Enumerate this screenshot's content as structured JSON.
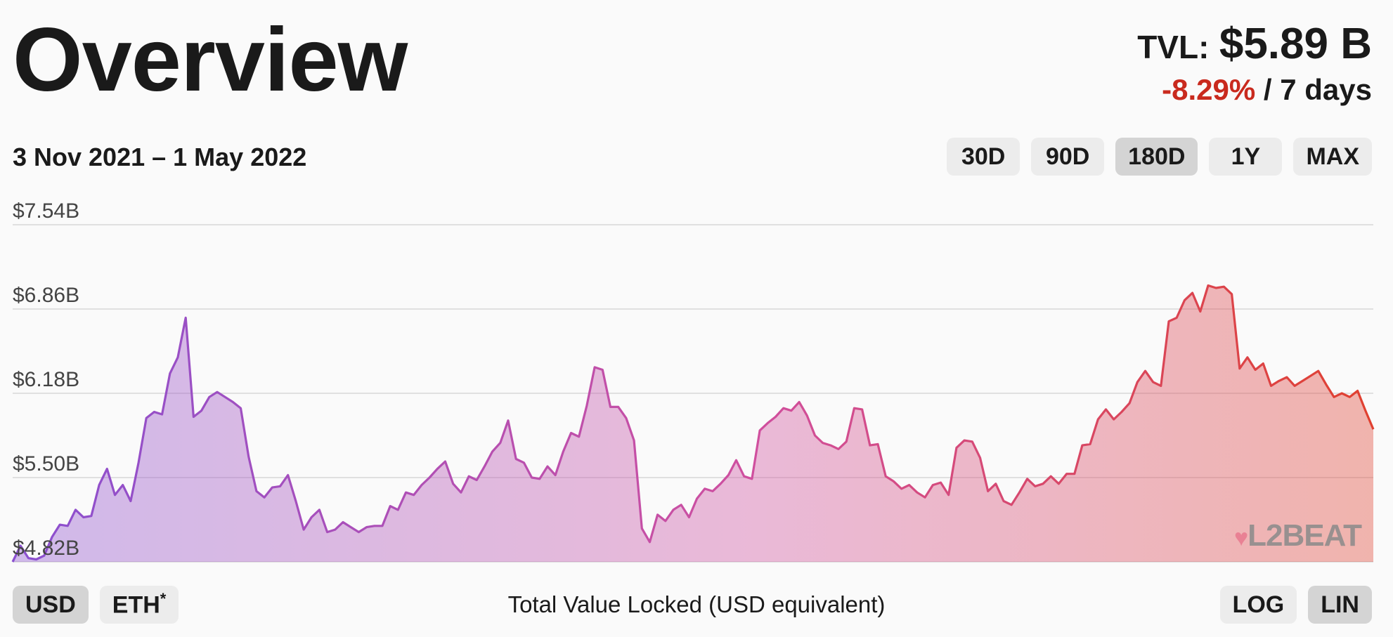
{
  "header": {
    "title": "Overview",
    "tvl_label": "TVL:",
    "tvl_value": "$5.89 B",
    "change": "-8.29%",
    "change_period": "/ 7 days"
  },
  "date_range": "3 Nov 2021 – 1 May 2022",
  "range_buttons": [
    {
      "label": "30D",
      "active": false
    },
    {
      "label": "90D",
      "active": false
    },
    {
      "label": "180D",
      "active": true
    },
    {
      "label": "1Y",
      "active": false
    },
    {
      "label": "MAX",
      "active": false
    }
  ],
  "currency_buttons": [
    {
      "label": "USD",
      "active": true
    },
    {
      "label": "ETH",
      "active": false,
      "note": "*"
    }
  ],
  "scale_buttons": [
    {
      "label": "LOG",
      "active": false
    },
    {
      "label": "LIN",
      "active": true
    }
  ],
  "caption": "Total Value Locked (USD equivalent)",
  "logo": {
    "text": "L2BEAT"
  },
  "colors": {
    "start": "#8a4fd0",
    "mid": "#d04f9e",
    "end": "#e0402f",
    "negative": "#c92a1e"
  },
  "chart_data": {
    "type": "area",
    "title": "",
    "xlabel": "Total Value Locked (USD equivalent)",
    "ylabel": "",
    "x_range": [
      "2021-11-03",
      "2022-05-01"
    ],
    "ylim": [
      4.82,
      7.54
    ],
    "yticks": [
      "$4.82B",
      "$5.50B",
      "$6.18B",
      "$6.86B",
      "$7.54B"
    ],
    "ytick_values": [
      4.82,
      5.5,
      6.18,
      6.86,
      7.54
    ],
    "grid": true,
    "legend": "none",
    "series": [
      {
        "values": [
          4.82,
          4.95,
          4.85,
          4.84,
          4.87,
          5.02,
          5.12,
          5.11,
          5.24,
          5.18,
          5.19,
          5.44,
          5.57,
          5.36,
          5.44,
          5.31,
          5.62,
          5.98,
          6.03,
          6.01,
          6.34,
          6.47,
          6.79,
          5.99,
          6.04,
          6.15,
          6.19,
          6.15,
          6.11,
          6.06,
          5.67,
          5.39,
          5.34,
          5.42,
          5.43,
          5.52,
          5.31,
          5.08,
          5.18,
          5.24,
          5.06,
          5.08,
          5.14,
          5.1,
          5.06,
          5.1,
          5.11,
          5.11,
          5.27,
          5.24,
          5.38,
          5.36,
          5.44,
          5.5,
          5.57,
          5.63,
          5.45,
          5.38,
          5.51,
          5.48,
          5.59,
          5.71,
          5.78,
          5.96,
          5.65,
          5.62,
          5.5,
          5.49,
          5.59,
          5.52,
          5.71,
          5.86,
          5.83,
          6.08,
          6.39,
          6.37,
          6.07,
          6.07,
          5.98,
          5.8,
          5.09,
          4.98,
          5.2,
          5.15,
          5.24,
          5.28,
          5.18,
          5.33,
          5.41,
          5.39,
          5.45,
          5.52,
          5.64,
          5.51,
          5.49,
          5.88,
          5.94,
          5.99,
          6.06,
          6.04,
          6.11,
          6.0,
          5.84,
          5.78,
          5.76,
          5.73,
          5.79,
          6.06,
          6.05,
          5.76,
          5.77,
          5.51,
          5.47,
          5.41,
          5.44,
          5.38,
          5.34,
          5.44,
          5.46,
          5.36,
          5.74,
          5.8,
          5.79,
          5.66,
          5.39,
          5.45,
          5.31,
          5.28,
          5.38,
          5.49,
          5.43,
          5.45,
          5.51,
          5.45,
          5.53,
          5.53,
          5.76,
          5.77,
          5.97,
          6.05,
          5.97,
          6.03,
          6.1,
          6.27,
          6.36,
          6.27,
          6.24,
          6.76,
          6.79,
          6.93,
          6.99,
          6.84,
          7.05,
          7.03,
          7.04,
          6.98,
          6.38,
          6.47,
          6.37,
          6.42,
          6.24,
          6.28,
          6.31,
          6.24,
          6.28,
          6.32,
          6.36,
          6.25,
          6.15,
          6.18,
          6.15,
          6.2,
          6.04,
          5.89
        ],
        "end_value_label": "$5.89 B"
      }
    ]
  }
}
